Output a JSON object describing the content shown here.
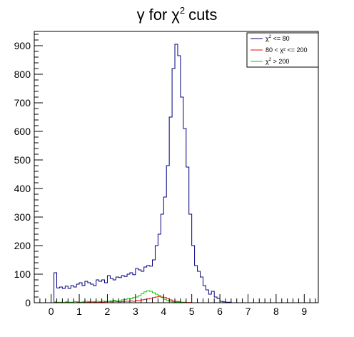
{
  "chart_data": {
    "type": "line",
    "title": "γ for χ² cuts",
    "title_parts": {
      "gamma": "γ",
      "for": "for",
      "chi": "χ",
      "sup": "2",
      "tail": "cuts"
    },
    "xlim": [
      -0.6,
      9.5
    ],
    "ylim": [
      0,
      950
    ],
    "bin_width": 0.1,
    "bin_start": -0.6,
    "x_ticks": [
      "0",
      "1",
      "2",
      "3",
      "4",
      "5",
      "6",
      "7",
      "8",
      "9"
    ],
    "y_ticks": [
      "0",
      "100",
      "200",
      "300",
      "400",
      "500",
      "600",
      "700",
      "800",
      "900"
    ],
    "legend_position": "top-right",
    "series": [
      {
        "name_prefix": "χ",
        "name_sup": "2",
        "name_suffix": " <= 80",
        "color": "#000080",
        "values": [
          0,
          0,
          0,
          0,
          0,
          0,
          0,
          105,
          52,
          55,
          50,
          58,
          50,
          60,
          55,
          65,
          70,
          60,
          75,
          70,
          65,
          60,
          80,
          75,
          80,
          70,
          95,
          85,
          80,
          90,
          88,
          95,
          92,
          100,
          105,
          98,
          120,
          115,
          110,
          125,
          130,
          128,
          150,
          200,
          240,
          310,
          370,
          480,
          650,
          820,
          905,
          865,
          720,
          610,
          475,
          310,
          200,
          130,
          110,
          90,
          60,
          45,
          30,
          40,
          20,
          15,
          5,
          3,
          2,
          2,
          0,
          0,
          0,
          0,
          0,
          0,
          0,
          0,
          0,
          0,
          0,
          0,
          0,
          0,
          0,
          0,
          0,
          0,
          0,
          0,
          0,
          0,
          0,
          0,
          0,
          0,
          0,
          0,
          0,
          0,
          0
        ]
      },
      {
        "name": "80 < χ² <= 200",
        "color": "#ff0000",
        "values": [
          0,
          0,
          0,
          0,
          0,
          0,
          0,
          2,
          0,
          1,
          0,
          1,
          0,
          1,
          0,
          2,
          1,
          2,
          1,
          2,
          3,
          2,
          1,
          2,
          2,
          3,
          4,
          3,
          5,
          4,
          3,
          4,
          5,
          5,
          6,
          5,
          8,
          7,
          10,
          12,
          13,
          15,
          18,
          20,
          22,
          20,
          18,
          15,
          10,
          6,
          5,
          4,
          2,
          2,
          1,
          1,
          0,
          0,
          0,
          0,
          0,
          0,
          0,
          0,
          0,
          0,
          0,
          0,
          0,
          0,
          0,
          0,
          0,
          0,
          0,
          0,
          0,
          0,
          0,
          0,
          0,
          0,
          0,
          0,
          0,
          0,
          0,
          0,
          0,
          0,
          0,
          0,
          0,
          0,
          0,
          0,
          0,
          0,
          0,
          0,
          0
        ]
      },
      {
        "name_prefix": "χ",
        "name_sup": "2",
        "name_suffix": " > 200",
        "color": "#00cc00",
        "values": [
          0,
          0,
          0,
          0,
          0,
          0,
          0,
          3,
          2,
          2,
          1,
          3,
          2,
          2,
          4,
          3,
          2,
          3,
          5,
          4,
          3,
          4,
          5,
          4,
          6,
          5,
          5,
          7,
          8,
          6,
          7,
          10,
          12,
          15,
          14,
          18,
          20,
          25,
          32,
          38,
          42,
          40,
          35,
          30,
          25,
          18,
          12,
          8,
          5,
          3,
          2,
          2,
          1,
          1,
          0,
          0,
          0,
          0,
          0,
          0,
          0,
          0,
          0,
          0,
          0,
          0,
          0,
          0,
          0,
          0,
          0,
          0,
          0,
          0,
          0,
          0,
          0,
          0,
          0,
          0,
          0,
          0,
          0,
          0,
          0,
          0,
          0,
          0,
          0,
          0,
          0,
          0,
          0,
          0,
          0,
          0,
          0,
          0,
          0,
          0,
          0
        ]
      }
    ]
  }
}
